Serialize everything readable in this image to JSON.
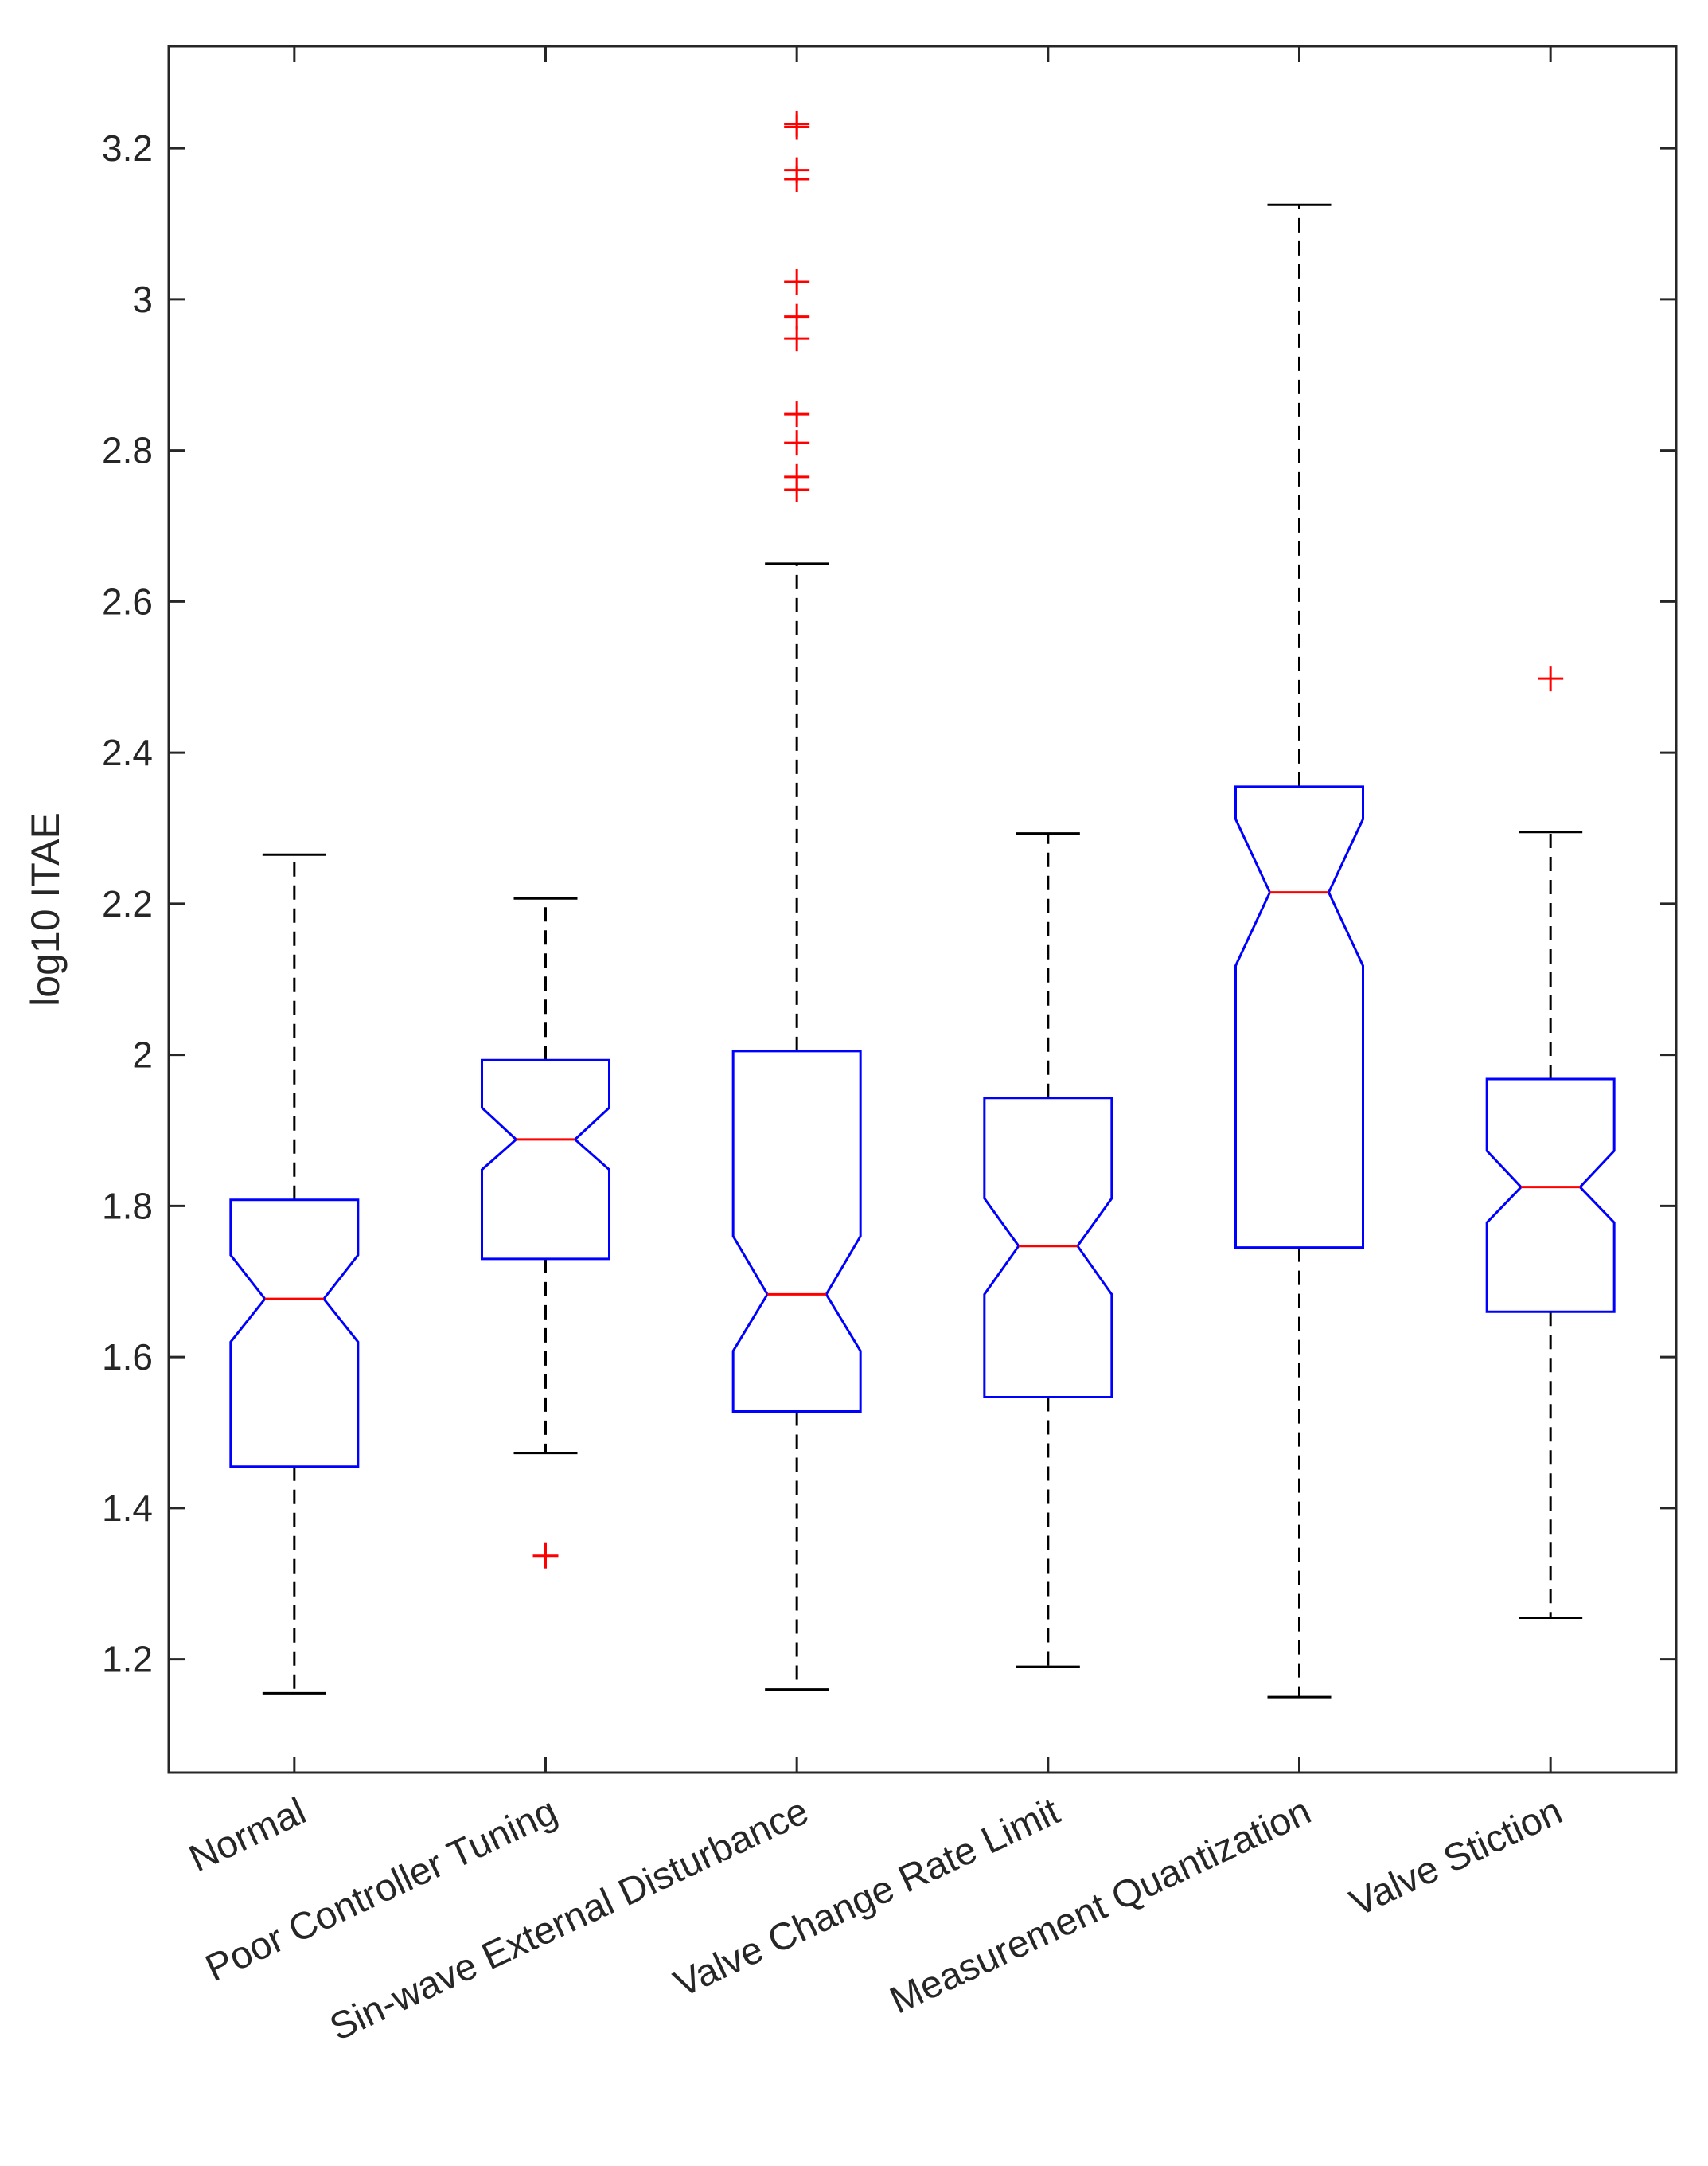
{
  "chart_data": {
    "type": "boxplot",
    "title": "",
    "xlabel": "",
    "ylabel": "log10 ITAE",
    "ylim": [
      1.05,
      3.335
    ],
    "yticks": [
      1.2,
      1.4,
      1.6,
      1.8,
      2,
      2.2,
      2.4,
      2.6,
      2.8,
      3,
      3.2
    ],
    "ytick_labels": [
      "1.2",
      "1.4",
      "1.6",
      "1.8",
      "2",
      "2.2",
      "2.4",
      "2.6",
      "2.8",
      "3",
      "3.2"
    ],
    "notched": true,
    "categories": [
      "Normal",
      "Poor Controller Tuning",
      "Sin-wave External Disturbance",
      "Valve Change Rate Limit",
      "Measurement Quantization",
      "Valve Stiction"
    ],
    "boxes": [
      {
        "whisker_low": 1.155,
        "q1": 1.455,
        "median": 1.677,
        "q3": 1.808,
        "whisker_high": 2.265,
        "notch_low": 1.62,
        "notch_high": 1.735,
        "outliers": []
      },
      {
        "whisker_low": 1.473,
        "q1": 1.73,
        "median": 1.888,
        "q3": 1.993,
        "whisker_high": 2.207,
        "notch_low": 1.848,
        "notch_high": 1.93,
        "outliers": [
          1.337
        ]
      },
      {
        "whisker_low": 1.16,
        "q1": 1.528,
        "median": 1.683,
        "q3": 2.005,
        "whisker_high": 2.65,
        "notch_low": 1.608,
        "notch_high": 1.76,
        "outliers": [
          2.748,
          2.765,
          2.81,
          2.848,
          2.948,
          2.977,
          3.023,
          3.159,
          3.171,
          3.228,
          3.232
        ]
      },
      {
        "whisker_low": 1.19,
        "q1": 1.547,
        "median": 1.747,
        "q3": 1.943,
        "whisker_high": 2.293,
        "notch_low": 1.683,
        "notch_high": 1.81,
        "outliers": []
      },
      {
        "whisker_low": 1.15,
        "q1": 1.745,
        "median": 2.215,
        "q3": 2.355,
        "whisker_high": 3.125,
        "notch_low": 2.118,
        "notch_high": 2.312,
        "outliers": []
      },
      {
        "whisker_low": 1.255,
        "q1": 1.66,
        "median": 1.825,
        "q3": 1.968,
        "whisker_high": 2.295,
        "notch_low": 1.778,
        "notch_high": 1.873,
        "outliers": [
          2.498
        ]
      }
    ],
    "colors": {
      "box": "#0000ff",
      "median": "#ff0000",
      "whisker": "#000000",
      "outlier": "#ff0000",
      "axis": "#262626"
    }
  }
}
